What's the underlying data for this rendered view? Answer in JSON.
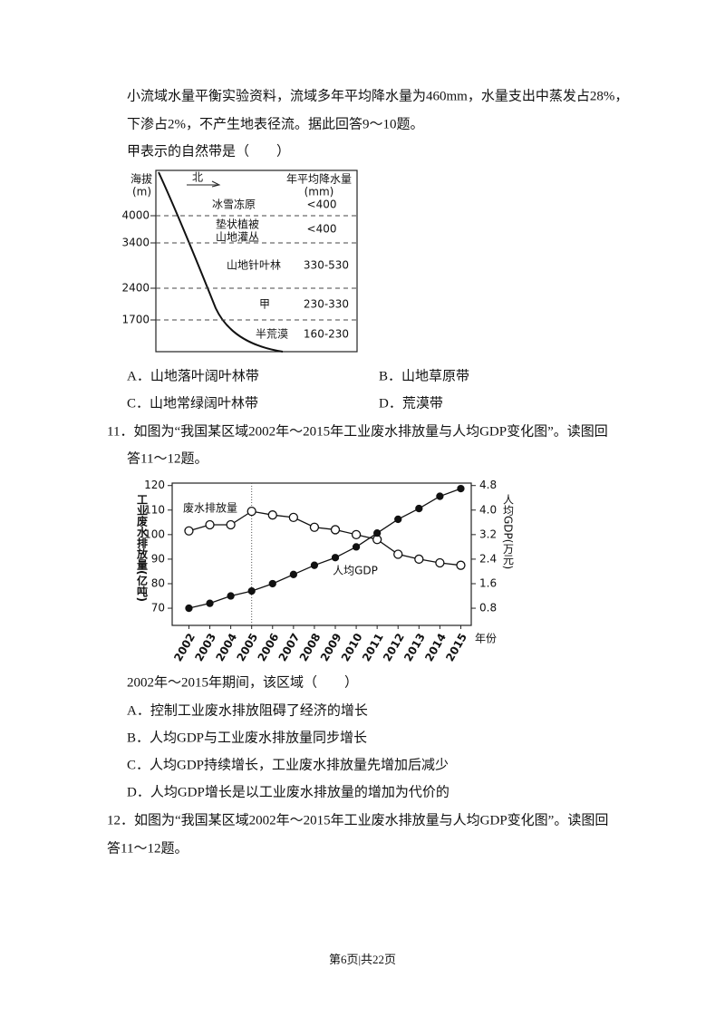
{
  "intro": [
    "小流域水量平衡实验资料，流域多年平均降水量为460mm，水量支出中蒸发占28%，",
    "下渗占2%，不产生地表径流。据此回答9～10题。"
  ],
  "question_10": {
    "stem": "甲表示的自然带是（　　）",
    "options": [
      "A．山地落叶阔叶林带",
      "B．山地草原带",
      "C．山地常绿阔叶林带",
      "D．荒漠带"
    ]
  },
  "figure_1": {
    "y_title": "海拔",
    "y_unit": "(m)",
    "direction": "北",
    "right_title": "年平均降水量",
    "right_unit": "(mm)",
    "altitudes": [
      4000,
      3400,
      2400,
      1700
    ],
    "zones": [
      {
        "name": [
          "冰雪冻原"
        ],
        "precipitation": "<400"
      },
      {
        "name": [
          "垫状植被",
          "山地灌丛"
        ],
        "precipitation": "<400"
      },
      {
        "name": [
          "山地针叶林"
        ],
        "precipitation": "330-530"
      },
      {
        "name": [
          "甲"
        ],
        "precipitation": "230-330"
      },
      {
        "name": [
          "半荒漠"
        ],
        "precipitation": "160-230"
      }
    ]
  },
  "question_11": {
    "stem": [
      "11．如图为“我国某区域2002年～2015年工业废水排放量与人均GDP变化图”。读图回",
      "答11～12题。"
    ],
    "sub_stem": "2002年～2015年期间，该区域（　　）",
    "options": [
      "A．控制工业废水排放阻碍了经济的增长",
      "B．人均GDP与工业废水排放量同步增长",
      "C．人均GDP持续增长，工业废水排放量先增加后减少",
      "D．人均GDP增长是以工业废水排放量的增加为代价的"
    ]
  },
  "chart_data": {
    "type": "line",
    "y_title": "工业废水排放量(亿吨)",
    "y2_title": "人均GDP(万元)",
    "x_title": "年份",
    "x": [
      2002,
      2003,
      2004,
      2005,
      2006,
      2007,
      2008,
      2009,
      2010,
      2011,
      2012,
      2013,
      2014,
      2015
    ],
    "xlim": [
      2001.2,
      2015.5
    ],
    "ylim": [
      63,
      121
    ],
    "yticks": [
      70,
      80,
      90,
      100,
      110,
      120
    ],
    "y2lim": [
      0.24,
      4.88
    ],
    "y2ticks": [
      0.8,
      1.6,
      2.4,
      3.2,
      {
        "value": 4,
        "label": "4.0"
      },
      4.8
    ],
    "vline_x": 2005,
    "color": "#111",
    "series": [
      {
        "name": "废水排放量",
        "marker": "open",
        "values": [
          101.5,
          104,
          104,
          109.5,
          108,
          107,
          103,
          102,
          100,
          98,
          92,
          90,
          88.5,
          87.5
        ]
      },
      {
        "name": "人均GDP",
        "marker": "filled",
        "axis": "y2",
        "values": [
          0.8,
          0.96,
          1.2,
          1.36,
          1.6,
          1.9,
          2.2,
          2.45,
          2.8,
          3.25,
          3.7,
          4.05,
          4.45,
          4.7
        ]
      }
    ]
  },
  "question_12": {
    "stem": [
      "12．如图为“我国某区域2002年～2015年工业废水排放量与人均GDP变化图”。读图回",
      "答11～12题。"
    ]
  },
  "footer": "第6页|共22页"
}
